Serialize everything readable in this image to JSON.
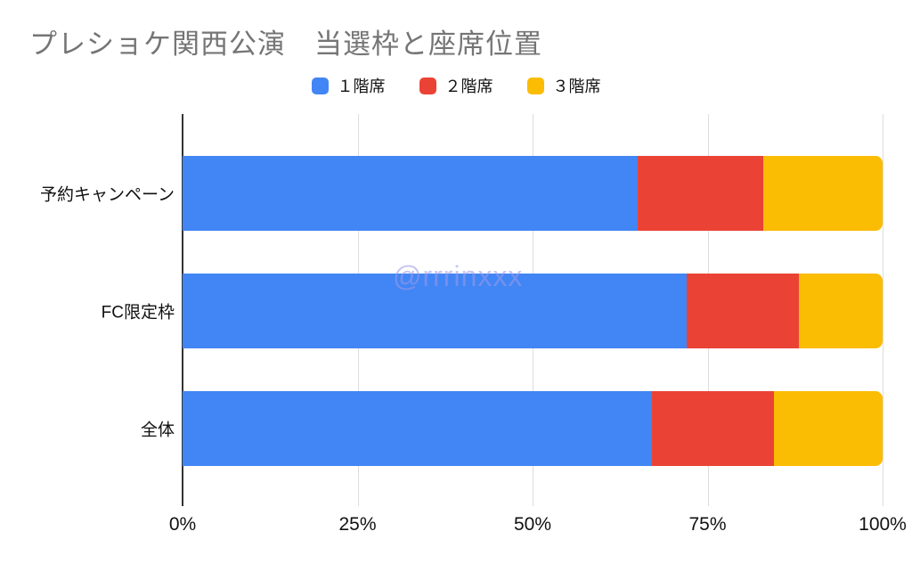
{
  "page": {
    "background": "#ffffff"
  },
  "header": {
    "title": "プレショケ関西公演　当選枠と座席位置",
    "title_color": "#757575"
  },
  "watermark": {
    "text": "@rrrinxxx",
    "color": "#9b9be8"
  },
  "chart_data": {
    "type": "bar",
    "orientation": "horizontal",
    "stacked": true,
    "percent_stacked": true,
    "title": "プレショケ関西公演　当選枠と座席位置",
    "categories": [
      "予約キャンペーン",
      "FC限定枠",
      "全体"
    ],
    "series": [
      {
        "name": "１階席",
        "color": "#4285F4",
        "values": [
          65,
          72,
          67
        ]
      },
      {
        "name": "２階席",
        "color": "#EA4335",
        "values": [
          18,
          16,
          17.5
        ]
      },
      {
        "name": "３階席",
        "color": "#FBBC04",
        "values": [
          17,
          12,
          15.5
        ]
      }
    ],
    "x_ticks": [
      "0%",
      "25%",
      "50%",
      "75%",
      "100%"
    ],
    "xlim": [
      0,
      100
    ],
    "grid": "vertical-light",
    "gridline_color": "#dddddd",
    "axis_color": "#333333",
    "legend_position": "top-center"
  }
}
